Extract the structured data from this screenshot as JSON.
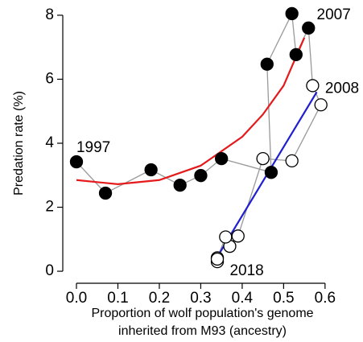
{
  "chart_data": {
    "type": "scatter",
    "x_label": [
      "Proportion of wolf population's genome",
      "inherited from M93 (ancestry)"
    ],
    "y_label": "Predation rate (%)",
    "xlim": [
      -0.033,
      0.61
    ],
    "ylim": [
      -0.3,
      8.3
    ],
    "xticks": [
      {
        "value": 0,
        "label": "0.0"
      },
      0.1,
      0.2,
      0.3,
      0.4,
      0.5,
      0.6
    ],
    "yticks": [
      0,
      2,
      4,
      6,
      8
    ],
    "path_color": "#999999",
    "series": [
      {
        "marker": "filled",
        "color": "#000000",
        "x": [
          0.0,
          0.07,
          0.18,
          0.25,
          0.3,
          0.35,
          0.47,
          0.46,
          0.52,
          0.53,
          0.56
        ],
        "values": [
          3.42,
          2.44,
          3.17,
          2.69,
          2.99,
          3.52,
          3.09,
          6.47,
          8.05,
          6.77,
          7.6
        ]
      },
      {
        "marker": "open",
        "color": "#000000",
        "x": [
          0.57,
          0.59,
          0.52,
          0.45,
          0.39,
          0.37,
          0.36,
          0.34,
          0.34,
          0.34
        ],
        "values": [
          5.8,
          5.2,
          3.45,
          3.52,
          1.1,
          0.78,
          1.07,
          0.42,
          0.3,
          0.38
        ]
      }
    ],
    "fits": [
      {
        "color": "#e41a1c",
        "x": [
          0.0,
          0.1,
          0.2,
          0.3,
          0.4,
          0.45,
          0.5,
          0.55
        ],
        "values": [
          2.85,
          2.72,
          2.85,
          3.3,
          4.2,
          4.9,
          5.8,
          7.3
        ]
      },
      {
        "color": "#1f1fd0",
        "x": [
          0.34,
          0.58
        ],
        "values": [
          0.45,
          5.6
        ]
      }
    ],
    "annotations": [
      {
        "text": "1997",
        "x": 0.0,
        "y": 3.85
      },
      {
        "text": "2007",
        "x": 0.58,
        "y": 8.0
      },
      {
        "text": "2008",
        "x": 0.6,
        "y": 5.7
      },
      {
        "text": "2018",
        "x": 0.37,
        "y": 0.0
      }
    ]
  }
}
